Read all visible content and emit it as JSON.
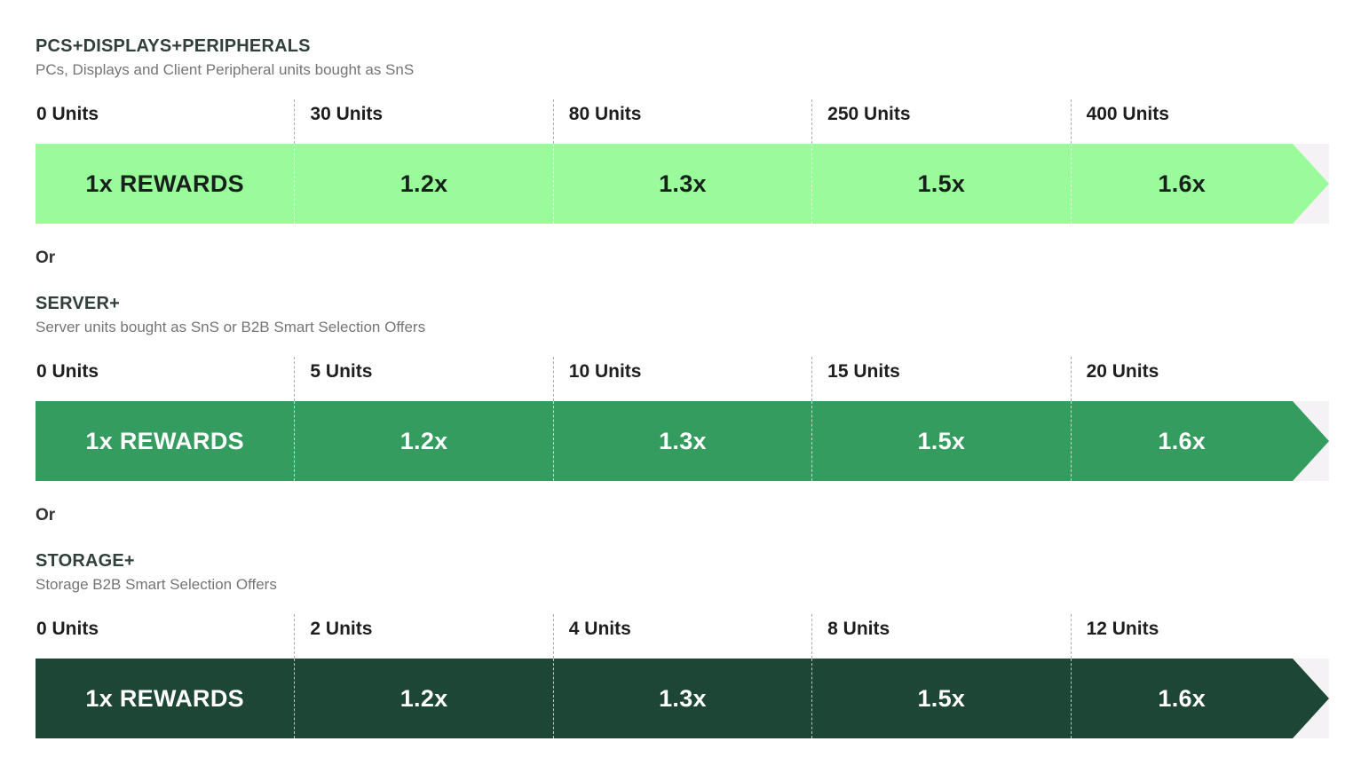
{
  "labels": {
    "or": "Or"
  },
  "colors": {
    "heading": "#31403B",
    "subtitle": "#757575",
    "tier_label": "#1E1E1E",
    "separator_dash": "#ABABAB",
    "bar_light_green": "#9AFB9A",
    "bar_mid_green": "#349C5E",
    "bar_dark_green": "#1E4637",
    "bar_text_dark": "#16211B",
    "bar_text_light": "#FFFFFF",
    "arrow_notch_bg": "#F4F2F5"
  },
  "sections": [
    {
      "title": "PCS+DISPLAYS+PERIPHERALS",
      "subtitle": "PCs, Displays and Client Peripheral units bought as SnS",
      "bar_color": "#9AFB9A",
      "text_color": "#16211B",
      "tiers": [
        {
          "units": "0 Units",
          "reward": "1x REWARDS"
        },
        {
          "units": "30 Units",
          "reward": "1.2x"
        },
        {
          "units": "80 Units",
          "reward": "1.3x"
        },
        {
          "units": "250 Units",
          "reward": "1.5x"
        },
        {
          "units": "400 Units",
          "reward": "1.6x"
        }
      ]
    },
    {
      "title": "SERVER+",
      "subtitle": "Server units bought as SnS or B2B Smart Selection Offers",
      "bar_color": "#349C5E",
      "text_color": "#FFFFFF",
      "tiers": [
        {
          "units": "0 Units",
          "reward": "1x REWARDS"
        },
        {
          "units": "5 Units",
          "reward": "1.2x"
        },
        {
          "units": "10 Units",
          "reward": "1.3x"
        },
        {
          "units": "15 Units",
          "reward": "1.5x"
        },
        {
          "units": "20 Units",
          "reward": "1.6x"
        }
      ]
    },
    {
      "title": "STORAGE+",
      "subtitle": "Storage B2B Smart Selection Offers",
      "bar_color": "#1E4637",
      "text_color": "#FFFFFF",
      "tiers": [
        {
          "units": "0 Units",
          "reward": "1x REWARDS"
        },
        {
          "units": "2 Units",
          "reward": "1.2x"
        },
        {
          "units": "4 Units",
          "reward": "1.3x"
        },
        {
          "units": "8 Units",
          "reward": "1.5x"
        },
        {
          "units": "12 Units",
          "reward": "1.6x"
        }
      ]
    }
  ],
  "chart_data": [
    {
      "type": "bar",
      "title": "PCS+DISPLAYS+PERIPHERALS",
      "subtitle": "PCs, Displays and Client Peripheral units bought as SnS",
      "categories": [
        "0 Units",
        "30 Units",
        "80 Units",
        "250 Units",
        "400 Units"
      ],
      "values": [
        1.0,
        1.2,
        1.3,
        1.5,
        1.6
      ],
      "value_labels": [
        "1x REWARDS",
        "1.2x",
        "1.3x",
        "1.5x",
        "1.6x"
      ],
      "bar_color": "#9AFB9A",
      "layout": "horizontal-arrow-tiers, equal-width segments, dashed separators, grid off, no axes"
    },
    {
      "type": "bar",
      "title": "SERVER+",
      "subtitle": "Server units bought as SnS or B2B Smart Selection Offers",
      "categories": [
        "0 Units",
        "5 Units",
        "10 Units",
        "15 Units",
        "20 Units"
      ],
      "values": [
        1.0,
        1.2,
        1.3,
        1.5,
        1.6
      ],
      "value_labels": [
        "1x REWARDS",
        "1.2x",
        "1.3x",
        "1.5x",
        "1.6x"
      ],
      "bar_color": "#349C5E",
      "layout": "horizontal-arrow-tiers, equal-width segments, dashed separators, grid off, no axes"
    },
    {
      "type": "bar",
      "title": "STORAGE+",
      "subtitle": "Storage B2B Smart Selection Offers",
      "categories": [
        "0 Units",
        "2 Units",
        "4 Units",
        "8 Units",
        "12 Units"
      ],
      "values": [
        1.0,
        1.2,
        1.3,
        1.5,
        1.6
      ],
      "value_labels": [
        "1x REWARDS",
        "1.2x",
        "1.3x",
        "1.5x",
        "1.6x"
      ],
      "bar_color": "#1E4637",
      "layout": "horizontal-arrow-tiers, equal-width segments, dashed separators, grid off, no axes"
    }
  ]
}
